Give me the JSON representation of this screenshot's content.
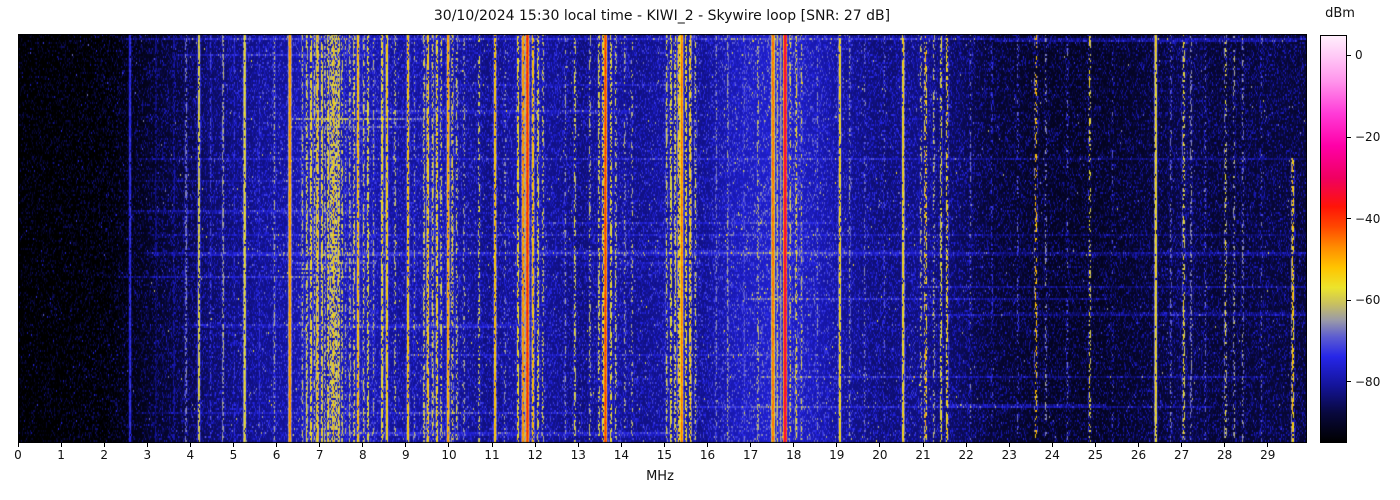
{
  "chart_data": {
    "type": "heatmap",
    "subtype": "radio-spectrum-waterfall",
    "title": "30/10/2024 15:30 local time - KIWI_2 - Skywire loop [SNR: 27 dB]",
    "xlabel": "MHz",
    "x_range_mhz": [
      0,
      29.91
    ],
    "x_ticks": [
      0,
      1,
      2,
      3,
      4,
      5,
      6,
      7,
      8,
      9,
      10,
      11,
      12,
      13,
      14,
      15,
      16,
      17,
      18,
      19,
      20,
      21,
      22,
      23,
      24,
      25,
      26,
      27,
      28,
      29
    ],
    "y_axis_ticks": "none (time axis, unlabeled)",
    "colorbar": {
      "label": "dBm",
      "range_dbm": [
        -95,
        5
      ],
      "ticks": [
        {
          "value": 0,
          "label": "0"
        },
        {
          "value": -20,
          "label": "−20"
        },
        {
          "value": -40,
          "label": "−40"
        },
        {
          "value": -60,
          "label": "−60"
        },
        {
          "value": -80,
          "label": "−80"
        }
      ],
      "colormap_stops": [
        [
          -95,
          "#000000"
        ],
        [
          -88,
          "#08083c"
        ],
        [
          -81,
          "#14149b"
        ],
        [
          -74,
          "#2626e8"
        ],
        [
          -69,
          "#5e5ed0"
        ],
        [
          -65,
          "#9a9aa8"
        ],
        [
          -61,
          "#c8c060"
        ],
        [
          -57,
          "#ece42c"
        ],
        [
          -52,
          "#ffc400"
        ],
        [
          -47,
          "#ff8c00"
        ],
        [
          -42,
          "#ff4800"
        ],
        [
          -37,
          "#ff1408"
        ],
        [
          -30,
          "#f00060"
        ],
        [
          -22,
          "#ff00a8"
        ],
        [
          -14,
          "#ff3cd8"
        ],
        [
          -6,
          "#ff96ec"
        ],
        [
          0,
          "#ffc8f6"
        ],
        [
          5,
          "#ffeffc"
        ]
      ]
    },
    "noise_floor_dbm": [
      [
        0,
        -94.5
      ],
      [
        1.2,
        -94
      ],
      [
        2.0,
        -92.5
      ],
      [
        2.6,
        -90.5
      ],
      [
        3.2,
        -88
      ],
      [
        3.8,
        -85.5
      ],
      [
        4.5,
        -82.5
      ],
      [
        5.2,
        -80.5
      ],
      [
        6.0,
        -79
      ],
      [
        6.6,
        -77.5
      ],
      [
        7.6,
        -77
      ],
      [
        8.3,
        -77.5
      ],
      [
        8.9,
        -79
      ],
      [
        9.5,
        -77.5
      ],
      [
        10.3,
        -79
      ],
      [
        11.0,
        -80.5
      ],
      [
        11.8,
        -77.5
      ],
      [
        12.4,
        -79.5
      ],
      [
        13.1,
        -81
      ],
      [
        13.7,
        -78.5
      ],
      [
        14.4,
        -80
      ],
      [
        15.1,
        -78.5
      ],
      [
        15.9,
        -79.5
      ],
      [
        16.6,
        -76
      ],
      [
        17.6,
        -74
      ],
      [
        18.4,
        -76
      ],
      [
        19.3,
        -79.5
      ],
      [
        20.1,
        -81.5
      ],
      [
        21.0,
        -80.5
      ],
      [
        21.9,
        -83.5
      ],
      [
        22.6,
        -86.5
      ],
      [
        23.6,
        -88
      ],
      [
        24.6,
        -88.5
      ],
      [
        25.6,
        -88
      ],
      [
        26.6,
        -86.5
      ],
      [
        27.1,
        -84.5
      ],
      [
        27.6,
        -86.5
      ],
      [
        28.3,
        -86.5
      ],
      [
        29.0,
        -86
      ],
      [
        29.9,
        -86.5
      ]
    ],
    "signal_fields": [
      "mhz",
      "halfwidth_mhz",
      "level_dbm",
      "duty",
      "row_start_frac",
      "row_end_frac"
    ],
    "signals": [
      [
        2.6,
        0.025,
        -72,
        0.95
      ],
      [
        3.2,
        0.02,
        -81,
        0.6
      ],
      [
        3.62,
        0.02,
        -78,
        0.5
      ],
      [
        3.9,
        0.025,
        -66,
        0.55
      ],
      [
        4.2,
        0.022,
        -57,
        0.85
      ],
      [
        4.47,
        0.02,
        -71,
        0.5
      ],
      [
        4.76,
        0.02,
        -62,
        0.6
      ],
      [
        5.02,
        0.02,
        -73,
        0.5
      ],
      [
        5.26,
        0.025,
        -56,
        0.92
      ],
      [
        5.6,
        0.02,
        -72,
        0.5
      ],
      [
        5.95,
        0.022,
        -63,
        0.5
      ],
      [
        6.31,
        0.022,
        -46,
        1
      ],
      [
        6.6,
        0.02,
        -60,
        0.5
      ],
      [
        6.7,
        0.02,
        -57,
        0.6
      ],
      [
        6.8,
        0.022,
        -54,
        0.7
      ],
      [
        6.88,
        0.02,
        -58,
        0.5
      ],
      [
        6.95,
        0.022,
        -52,
        0.8
      ],
      [
        7.05,
        0.02,
        -55,
        0.7
      ],
      [
        7.12,
        0.02,
        -60,
        0.5
      ],
      [
        7.2,
        0.022,
        -54,
        0.7
      ],
      [
        7.26,
        0.02,
        -57,
        0.55
      ],
      [
        7.32,
        0.022,
        -52,
        0.75
      ],
      [
        7.38,
        0.02,
        -56,
        0.6
      ],
      [
        7.44,
        0.022,
        -54,
        0.7
      ],
      [
        7.52,
        0.02,
        -58,
        0.5
      ],
      [
        7.6,
        0.02,
        -62,
        0.4
      ],
      [
        7.7,
        0.02,
        -60,
        0.45
      ],
      [
        7.8,
        0.02,
        -57,
        0.5
      ],
      [
        7.89,
        0.022,
        -50,
        0.85
      ],
      [
        8.02,
        0.02,
        -58,
        0.5
      ],
      [
        8.12,
        0.02,
        -55,
        0.6
      ],
      [
        8.25,
        0.02,
        -62,
        0.4
      ],
      [
        8.45,
        0.022,
        -54,
        0.75
      ],
      [
        8.56,
        0.022,
        -52,
        0.9
      ],
      [
        8.75,
        0.02,
        -60,
        0.4
      ],
      [
        9.05,
        0.022,
        -51,
        0.8
      ],
      [
        9.2,
        0.02,
        -63,
        0.35
      ],
      [
        9.42,
        0.02,
        -58,
        0.5
      ],
      [
        9.51,
        0.022,
        -51,
        0.75
      ],
      [
        9.62,
        0.02,
        -56,
        0.6
      ],
      [
        9.72,
        0.022,
        -53,
        0.7
      ],
      [
        9.82,
        0.02,
        -57,
        0.5
      ],
      [
        9.98,
        0.022,
        -48,
        0.9
      ],
      [
        10.08,
        0.02,
        -55,
        0.5
      ],
      [
        10.18,
        0.02,
        -58,
        0.4
      ],
      [
        10.35,
        0.02,
        -62,
        0.3
      ],
      [
        10.7,
        0.02,
        -57,
        0.35
      ],
      [
        11.07,
        0.022,
        -50,
        0.85
      ],
      [
        11.3,
        0.02,
        -63,
        0.25
      ],
      [
        11.6,
        0.02,
        -53,
        0.7
      ],
      [
        11.72,
        0.022,
        -46,
        0.9
      ],
      [
        11.82,
        0.025,
        -38,
        1
      ],
      [
        11.95,
        0.022,
        -50,
        0.8
      ],
      [
        12.07,
        0.02,
        -55,
        0.6
      ],
      [
        12.18,
        0.02,
        -58,
        0.4
      ],
      [
        12.7,
        0.02,
        -64,
        0.4
      ],
      [
        12.92,
        0.02,
        -57,
        0.5
      ],
      [
        13.27,
        0.02,
        -60,
        0.35
      ],
      [
        13.48,
        0.02,
        -57,
        0.5
      ],
      [
        13.57,
        0.02,
        -54,
        0.6
      ],
      [
        13.63,
        0.024,
        -40,
        1
      ],
      [
        13.76,
        0.02,
        -55,
        0.6
      ],
      [
        13.87,
        0.02,
        -58,
        0.4
      ],
      [
        14.08,
        0.02,
        -62,
        0.35
      ],
      [
        14.25,
        0.02,
        -60,
        0.3
      ],
      [
        15.05,
        0.02,
        -58,
        0.5
      ],
      [
        15.15,
        0.02,
        -55,
        0.6
      ],
      [
        15.25,
        0.02,
        -56,
        0.6
      ],
      [
        15.33,
        0.02,
        -52,
        0.7
      ],
      [
        15.4,
        0.024,
        -45,
        1
      ],
      [
        15.5,
        0.02,
        -54,
        0.6
      ],
      [
        15.6,
        0.022,
        -53,
        0.7
      ],
      [
        15.72,
        0.02,
        -58,
        0.4
      ],
      [
        16.2,
        0.02,
        -65,
        0.4
      ],
      [
        16.47,
        0.02,
        -63,
        0.5
      ],
      [
        16.85,
        0.02,
        -68,
        0.5
      ],
      [
        17.17,
        0.02,
        -60,
        0.4
      ],
      [
        17.52,
        0.024,
        -44,
        1
      ],
      [
        17.62,
        0.02,
        -60,
        0.8
      ],
      [
        17.7,
        0.02,
        -63,
        0.9
      ],
      [
        17.8,
        0.024,
        -30,
        1
      ],
      [
        17.92,
        0.02,
        -58,
        0.5
      ],
      [
        18.06,
        0.02,
        -55,
        0.5
      ],
      [
        18.18,
        0.02,
        -60,
        0.4
      ],
      [
        18.55,
        0.02,
        -66,
        0.4
      ],
      [
        19.07,
        0.022,
        -53,
        0.85
      ],
      [
        19.3,
        0.02,
        -64,
        0.4
      ],
      [
        19.65,
        0.02,
        -66,
        0.3
      ],
      [
        20.1,
        0.02,
        -68,
        0.3
      ],
      [
        20.54,
        0.022,
        -53,
        0.9
      ],
      [
        20.95,
        0.02,
        -60,
        0.3
      ],
      [
        21.06,
        0.022,
        -50,
        0.45
      ],
      [
        21.25,
        0.02,
        -60,
        0.35
      ],
      [
        21.42,
        0.02,
        -56,
        0.5
      ],
      [
        21.56,
        0.02,
        -52,
        0.5
      ],
      [
        22.1,
        0.02,
        -67,
        0.3
      ],
      [
        22.6,
        0.02,
        -70,
        0.25
      ],
      [
        23.2,
        0.02,
        -68,
        0.25
      ],
      [
        23.62,
        0.022,
        -50,
        0.3
      ],
      [
        23.85,
        0.02,
        -64,
        0.3
      ],
      [
        24.35,
        0.02,
        -68,
        0.25
      ],
      [
        24.87,
        0.02,
        -55,
        0.35
      ],
      [
        25.4,
        0.02,
        -70,
        0.2
      ],
      [
        26.4,
        0.022,
        -54,
        0.95
      ],
      [
        26.75,
        0.02,
        -66,
        0.3
      ],
      [
        27.05,
        0.022,
        -55,
        0.45
      ],
      [
        27.22,
        0.02,
        -64,
        0.4
      ],
      [
        27.55,
        0.02,
        -68,
        0.3
      ],
      [
        28.02,
        0.02,
        -56,
        0.35
      ],
      [
        28.22,
        0.02,
        -62,
        0.3
      ],
      [
        28.42,
        0.02,
        -64,
        0.35
      ],
      [
        28.85,
        0.02,
        -68,
        0.25
      ],
      [
        29.58,
        0.022,
        -51,
        0.65,
        0.3,
        1
      ]
    ],
    "streaks": {
      "seed": 20241030,
      "count": 28,
      "boost_db_range": [
        4,
        11
      ],
      "fixed": [
        {
          "row_frac": 0.205,
          "f1": 6.3,
          "f2": 9.4,
          "boost": 15
        },
        {
          "row_frac": 0.225,
          "f1": 6.3,
          "f2": 9.0,
          "boost": 13
        },
        {
          "row_frac": 0.555,
          "f1": 6.4,
          "f2": 8.3,
          "boost": 12
        },
        {
          "row_frac": 0.57,
          "f1": 6.4,
          "f2": 7.6,
          "boost": 10
        }
      ]
    },
    "rows": 205
  }
}
